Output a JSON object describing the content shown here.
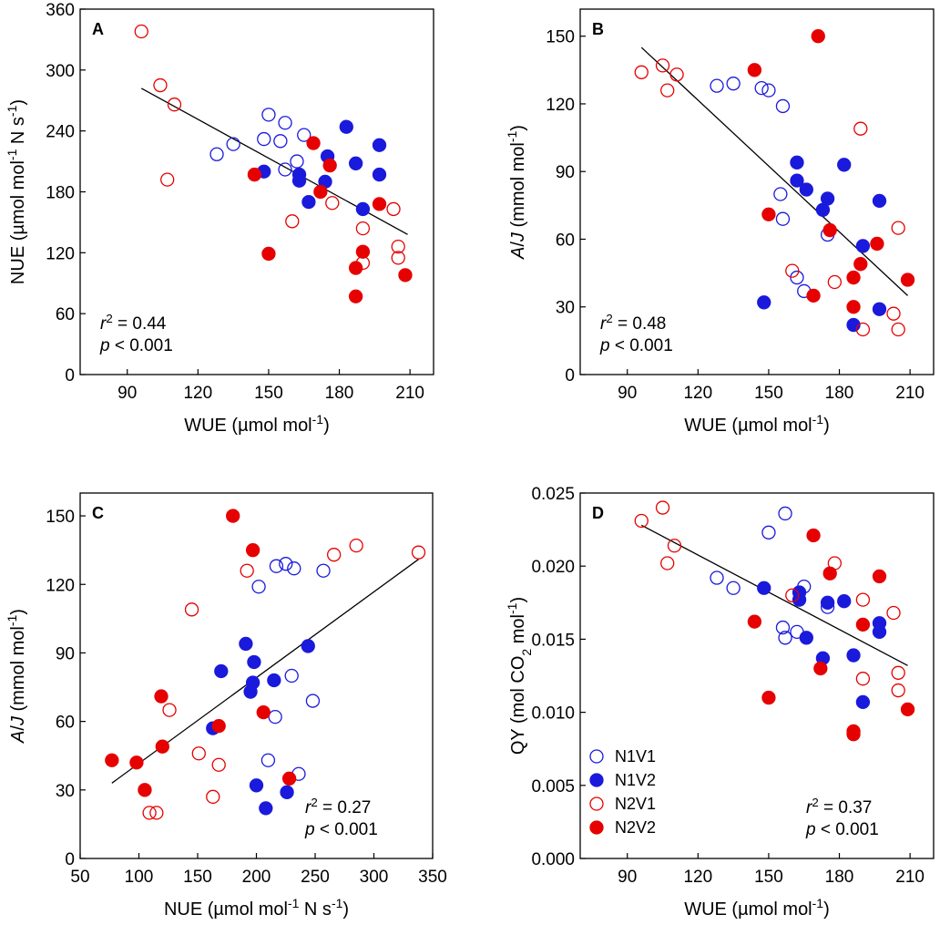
{
  "colors": {
    "N1": "#1a1adc",
    "N2": "#e60000"
  },
  "legend": [
    {
      "name": "N1V1",
      "color": "#1a1adc",
      "filled": false
    },
    {
      "name": "N1V2",
      "color": "#1a1adc",
      "filled": true
    },
    {
      "name": "N2V1",
      "color": "#e60000",
      "filled": false
    },
    {
      "name": "N2V2",
      "color": "#e60000",
      "filled": true
    }
  ],
  "chart_data": [
    {
      "type": "scatter",
      "panel": "A",
      "xlabel_parts": [
        "WUE (µmol mol",
        "-1",
        ")"
      ],
      "ylabel_parts": [
        "NUE (µmol mol",
        "-1",
        " N s",
        "-1",
        ")"
      ],
      "xlim": [
        70,
        220
      ],
      "ylim": [
        0,
        360
      ],
      "xticks": [
        90,
        120,
        150,
        180,
        210
      ],
      "yticks": [
        0,
        60,
        120,
        180,
        240,
        300,
        360
      ],
      "stats": {
        "r2_label": "r",
        "r2_sup": "2",
        "r2_value": " = 0.44",
        "p_label": "p",
        "p_value": " < 0.001",
        "position": "bottom-left"
      },
      "fit_line": {
        "x": [
          96,
          209
        ],
        "y": [
          282,
          138
        ]
      },
      "series": [
        {
          "name": "N1V1",
          "points": [
            [
              128,
              217
            ],
            [
              135,
              227
            ],
            [
              148,
              232
            ],
            [
              150,
              256
            ],
            [
              155,
              230
            ],
            [
              157,
              248
            ],
            [
              157,
              202
            ],
            [
              162,
              210
            ],
            [
              165,
              236
            ]
          ]
        },
        {
          "name": "N1V2",
          "points": [
            [
              148,
              200
            ],
            [
              163,
              197
            ],
            [
              163,
              191
            ],
            [
              167,
              170
            ],
            [
              174,
              190
            ],
            [
              175,
              215
            ],
            [
              183,
              244
            ],
            [
              187,
              208
            ],
            [
              190,
              163
            ],
            [
              197,
              226
            ],
            [
              197,
              197
            ]
          ]
        },
        {
          "name": "N2V1",
          "points": [
            [
              96,
              338
            ],
            [
              104,
              285
            ],
            [
              110,
              266
            ],
            [
              107,
              192
            ],
            [
              160,
              151
            ],
            [
              177,
              169
            ],
            [
              190,
              144
            ],
            [
              190,
              110
            ],
            [
              203,
              163
            ],
            [
              205,
              126
            ],
            [
              205,
              115
            ]
          ]
        },
        {
          "name": "N2V2",
          "points": [
            [
              144,
              197
            ],
            [
              150,
              119
            ],
            [
              169,
              228
            ],
            [
              172,
              180
            ],
            [
              176,
              206
            ],
            [
              187,
              105
            ],
            [
              187,
              77
            ],
            [
              190,
              121
            ],
            [
              197,
              168
            ],
            [
              208,
              98
            ]
          ]
        }
      ]
    },
    {
      "type": "scatter",
      "panel": "B",
      "xlabel_parts": [
        "WUE (µmol mol",
        "-1",
        ")"
      ],
      "ylabel_parts": [
        "A",
        "/",
        "J",
        " (mmol mol",
        "-1",
        ")"
      ],
      "xlim": [
        70,
        220
      ],
      "ylim": [
        0,
        162
      ],
      "xticks": [
        90,
        120,
        150,
        180,
        210
      ],
      "yticks": [
        0,
        30,
        60,
        90,
        120,
        150
      ],
      "stats": {
        "r2_label": "r",
        "r2_sup": "2",
        "r2_value": " = 0.48",
        "p_label": "p",
        "p_value": " < 0.001",
        "position": "bottom-left"
      },
      "fit_line": {
        "x": [
          96,
          209
        ],
        "y": [
          145,
          35
        ]
      },
      "series": [
        {
          "name": "N1V1",
          "points": [
            [
              128,
              128
            ],
            [
              135,
              129
            ],
            [
              147,
              127
            ],
            [
              150,
              126
            ],
            [
              156,
              119
            ],
            [
              155,
              80
            ],
            [
              156,
              69
            ],
            [
              162,
              43
            ],
            [
              165,
              37
            ],
            [
              175,
              62
            ]
          ]
        },
        {
          "name": "N1V2",
          "points": [
            [
              148,
              32
            ],
            [
              162,
              94
            ],
            [
              162,
              86
            ],
            [
              166,
              82
            ],
            [
              173,
              73
            ],
            [
              175,
              78
            ],
            [
              182,
              93
            ],
            [
              186,
              22
            ],
            [
              190,
              57
            ],
            [
              197,
              77
            ],
            [
              197,
              29
            ]
          ]
        },
        {
          "name": "N2V1",
          "points": [
            [
              96,
              134
            ],
            [
              105,
              137
            ],
            [
              107,
              126
            ],
            [
              111,
              133
            ],
            [
              160,
              46
            ],
            [
              178,
              41
            ],
            [
              189,
              109
            ],
            [
              190,
              20
            ],
            [
              203,
              27
            ],
            [
              205,
              65
            ],
            [
              205,
              20
            ]
          ]
        },
        {
          "name": "N2V2",
          "points": [
            [
              144,
              135
            ],
            [
              150,
              71
            ],
            [
              171,
              150
            ],
            [
              176,
              64
            ],
            [
              169,
              35
            ],
            [
              186,
              43
            ],
            [
              186,
              30
            ],
            [
              189,
              49
            ],
            [
              196,
              58
            ],
            [
              209,
              42
            ]
          ]
        }
      ]
    },
    {
      "type": "scatter",
      "panel": "C",
      "xlabel_parts": [
        "NUE (µmol mol",
        "-1",
        " N s",
        "-1",
        ")"
      ],
      "ylabel_parts": [
        "A",
        "/",
        "J",
        " (mmol mol",
        "-1",
        ")"
      ],
      "xlim": [
        50,
        350
      ],
      "ylim": [
        0,
        160
      ],
      "xticks": [
        50,
        100,
        150,
        200,
        250,
        300,
        350
      ],
      "yticks": [
        0,
        30,
        60,
        90,
        120,
        150
      ],
      "stats": {
        "r2_label": "r",
        "r2_sup": "2",
        "r2_value": " = 0.27",
        "p_label": "p",
        "p_value": " < 0.001",
        "position": "bottom-right"
      },
      "fit_line": {
        "x": [
          77,
          338
        ],
        "y": [
          33,
          131
        ]
      },
      "series": [
        {
          "name": "N1V1",
          "points": [
            [
              202,
              119
            ],
            [
              217,
              128
            ],
            [
              225,
              129
            ],
            [
              232,
              127
            ],
            [
              257,
              126
            ],
            [
              230,
              80
            ],
            [
              248,
              69
            ],
            [
              216,
              62
            ],
            [
              210,
              43
            ],
            [
              236,
              37
            ]
          ]
        },
        {
          "name": "N1V2",
          "points": [
            [
              163,
              57
            ],
            [
              170,
              82
            ],
            [
              191,
              94
            ],
            [
              195,
              73
            ],
            [
              197,
              77
            ],
            [
              198,
              86
            ],
            [
              200,
              32
            ],
            [
              208,
              22
            ],
            [
              215,
              78
            ],
            [
              226,
              29
            ],
            [
              244,
              93
            ]
          ]
        },
        {
          "name": "N2V1",
          "points": [
            [
              109,
              20
            ],
            [
              115,
              20
            ],
            [
              126,
              65
            ],
            [
              145,
              109
            ],
            [
              151,
              46
            ],
            [
              163,
              27
            ],
            [
              168,
              41
            ],
            [
              192,
              126
            ],
            [
              266,
              133
            ],
            [
              285,
              137
            ],
            [
              338,
              134
            ]
          ]
        },
        {
          "name": "N2V2",
          "points": [
            [
              77,
              43
            ],
            [
              98,
              42
            ],
            [
              105,
              30
            ],
            [
              119,
              71
            ],
            [
              120,
              49
            ],
            [
              168,
              58
            ],
            [
              180,
              150
            ],
            [
              197,
              135
            ],
            [
              206,
              64
            ],
            [
              228,
              35
            ]
          ]
        }
      ]
    },
    {
      "type": "scatter",
      "panel": "D",
      "xlabel_parts": [
        "WUE (µmol mol",
        "-1",
        ")"
      ],
      "ylabel_parts": [
        "QY (mol CO",
        "2",
        " mol",
        "-1",
        ")"
      ],
      "xlim": [
        70,
        220
      ],
      "ylim": [
        0,
        0.025
      ],
      "xticks": [
        90,
        120,
        150,
        180,
        210
      ],
      "yticks": [
        "0.000",
        "0.005",
        "0.010",
        "0.015",
        "0.020",
        "0.025"
      ],
      "stats": {
        "r2_label": "r",
        "r2_sup": "2",
        "r2_value": " = 0.37",
        "p_label": "p",
        "p_value": " < 0.001",
        "position": "bottom-right"
      },
      "legend_position": "bottom-left",
      "fit_line": {
        "x": [
          96,
          209
        ],
        "y": [
          0.0228,
          0.0132
        ]
      },
      "series": [
        {
          "name": "N1V1",
          "points": [
            [
              128,
              0.0192
            ],
            [
              135,
              0.0185
            ],
            [
              150,
              0.0223
            ],
            [
              156,
              0.0158
            ],
            [
              157,
              0.0151
            ],
            [
              157,
              0.0236
            ],
            [
              162,
              0.0155
            ],
            [
              165,
              0.0186
            ],
            [
              175,
              0.0172
            ]
          ]
        },
        {
          "name": "N1V2",
          "points": [
            [
              148,
              0.0185
            ],
            [
              163,
              0.0182
            ],
            [
              163,
              0.0177
            ],
            [
              166,
              0.0151
            ],
            [
              173,
              0.0137
            ],
            [
              175,
              0.0175
            ],
            [
              182,
              0.0176
            ],
            [
              186,
              0.0139
            ],
            [
              190,
              0.0107
            ],
            [
              197,
              0.0161
            ],
            [
              197,
              0.0155
            ]
          ]
        },
        {
          "name": "N2V1",
          "points": [
            [
              96,
              0.0231
            ],
            [
              105,
              0.024
            ],
            [
              107,
              0.0202
            ],
            [
              110,
              0.0214
            ],
            [
              160,
              0.018
            ],
            [
              178,
              0.0202
            ],
            [
              190,
              0.0177
            ],
            [
              190,
              0.0123
            ],
            [
              203,
              0.0168
            ],
            [
              205,
              0.0127
            ],
            [
              205,
              0.0115
            ]
          ]
        },
        {
          "name": "N2V2",
          "points": [
            [
              144,
              0.0162
            ],
            [
              150,
              0.011
            ],
            [
              169,
              0.0221
            ],
            [
              172,
              0.013
            ],
            [
              176,
              0.0195
            ],
            [
              186,
              0.0085
            ],
            [
              186,
              0.0087
            ],
            [
              190,
              0.016
            ],
            [
              197,
              0.0193
            ],
            [
              209,
              0.0102
            ]
          ]
        }
      ]
    }
  ]
}
